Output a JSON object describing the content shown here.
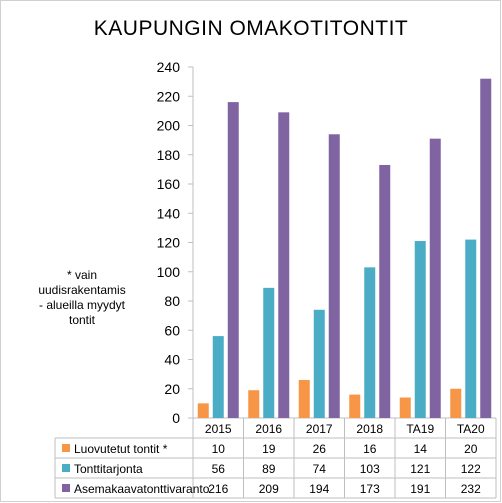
{
  "chart_data": {
    "type": "bar",
    "title": "KAUPUNGIN  OMAKOTITONTIT",
    "note": [
      "*  vain",
      "uudisrakentamis",
      "- alueilla myydyt",
      "tontit"
    ],
    "categories": [
      "2015",
      "2016",
      "2017",
      "2018",
      "TA19",
      "TA20"
    ],
    "ylim": [
      0,
      240
    ],
    "yticks": [
      0,
      20,
      40,
      60,
      80,
      100,
      120,
      140,
      160,
      180,
      200,
      220,
      240
    ],
    "grid": false,
    "legend": "data-table-rows",
    "series": [
      {
        "name": "Luovutetut tontit  *",
        "color": "#f79646",
        "values": [
          10,
          19,
          26,
          16,
          14,
          20
        ]
      },
      {
        "name": "Tonttitarjonta",
        "color": "#4bacc6",
        "values": [
          56,
          89,
          74,
          103,
          121,
          122
        ]
      },
      {
        "name": "Asemakaavatonttivaranto",
        "color": "#8064a2",
        "values": [
          216,
          209,
          194,
          173,
          191,
          232
        ]
      }
    ]
  }
}
